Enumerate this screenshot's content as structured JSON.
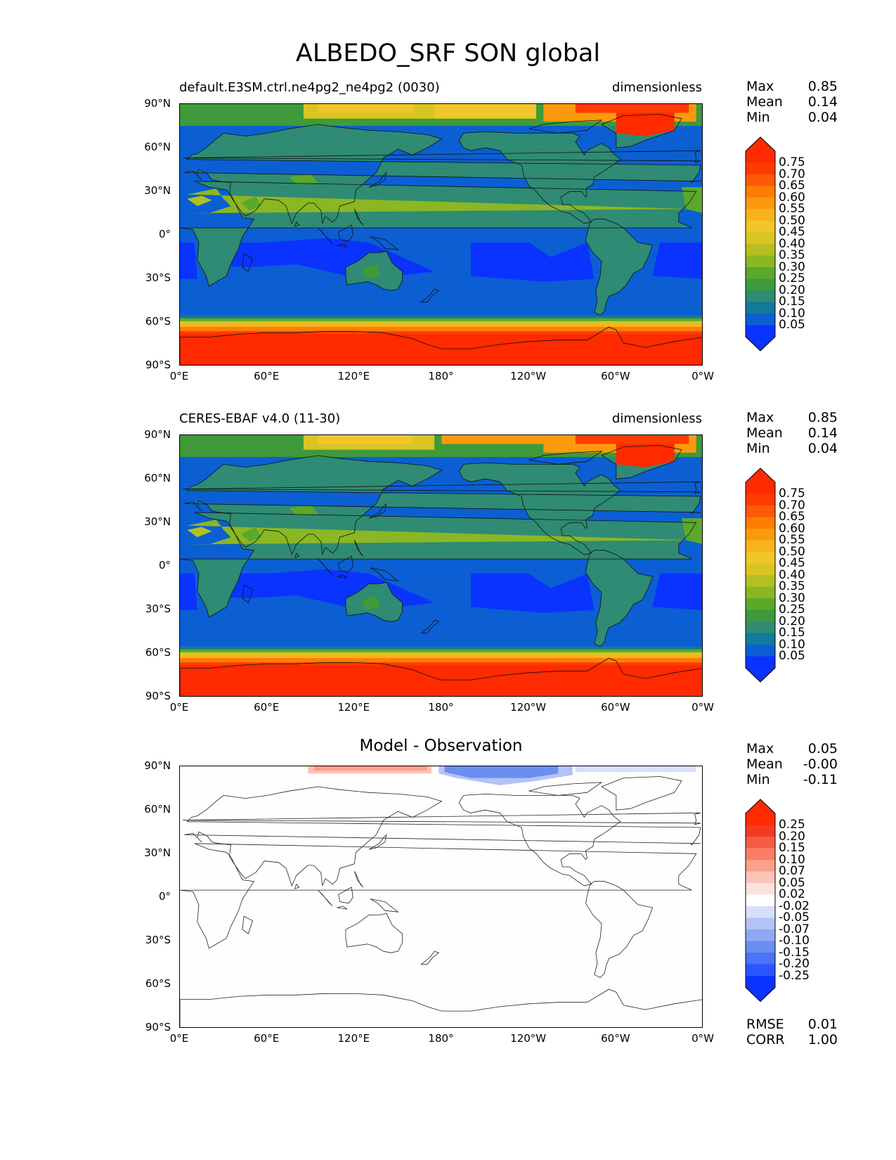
{
  "title": "ALBEDO_SRF SON global",
  "axes": {
    "lat_labels": [
      "90°N",
      "60°N",
      "30°N",
      "0°",
      "30°S",
      "60°S",
      "90°S"
    ],
    "lon_labels": [
      "0°E",
      "60°E",
      "120°E",
      "180°",
      "120°W",
      "60°W",
      "0°W"
    ]
  },
  "panels": [
    {
      "title_left": "default.E3SM.ctrl.ne4pg2_ne4pg2 (0030)",
      "title_right": "dimensionless",
      "stats": [
        {
          "label": "Max",
          "value": "0.85"
        },
        {
          "label": "Mean",
          "value": "0.14"
        },
        {
          "label": "Min",
          "value": "0.04"
        }
      ],
      "colorbar_labels": [
        "0.75",
        "0.70",
        "0.65",
        "0.60",
        "0.55",
        "0.50",
        "0.45",
        "0.40",
        "0.35",
        "0.30",
        "0.25",
        "0.20",
        "0.15",
        "0.10",
        "0.05"
      ]
    },
    {
      "title_left": "CERES-EBAF v4.0 (11-30)",
      "title_right": "dimensionless",
      "stats": [
        {
          "label": "Max",
          "value": "0.85"
        },
        {
          "label": "Mean",
          "value": "0.14"
        },
        {
          "label": "Min",
          "value": "0.04"
        }
      ],
      "colorbar_labels": [
        "0.75",
        "0.70",
        "0.65",
        "0.60",
        "0.55",
        "0.50",
        "0.45",
        "0.40",
        "0.35",
        "0.30",
        "0.25",
        "0.20",
        "0.15",
        "0.10",
        "0.05"
      ]
    },
    {
      "title_center": "Model - Observation",
      "stats": [
        {
          "label": "Max",
          "value": "0.05"
        },
        {
          "label": "Mean",
          "value": "-0.00"
        },
        {
          "label": "Min",
          "value": "-0.11"
        }
      ],
      "colorbar_labels": [
        "0.25",
        "0.20",
        "0.15",
        "0.10",
        "0.07",
        "0.05",
        "0.02",
        "-0.02",
        "-0.05",
        "-0.07",
        "-0.10",
        "-0.15",
        "-0.20",
        "-0.25"
      ],
      "metrics": [
        {
          "label": "RMSE",
          "value": "0.01"
        },
        {
          "label": "CORR",
          "value": "1.00"
        }
      ]
    }
  ],
  "colors": {
    "seq": [
      "#0a33ff",
      "#0b5fd3",
      "#127a9a",
      "#2f8b73",
      "#3e9a3a",
      "#5aa92b",
      "#8ab723",
      "#b5bf22",
      "#d9c521",
      "#f1c62b",
      "#f8b21e",
      "#fb9a0d",
      "#fd7d05",
      "#fe5a06",
      "#ff3b00",
      "#ff2a00"
    ],
    "div": [
      "#0a33ff",
      "#2a55ff",
      "#4c73f5",
      "#6b8ff0",
      "#8ea9f2",
      "#b3c3f5",
      "#d7e0fa",
      "#ffffff",
      "#fde3dd",
      "#fcc4b7",
      "#fba08c",
      "#f87f66",
      "#f55b43",
      "#f23a21",
      "#ff2a00"
    ]
  }
}
